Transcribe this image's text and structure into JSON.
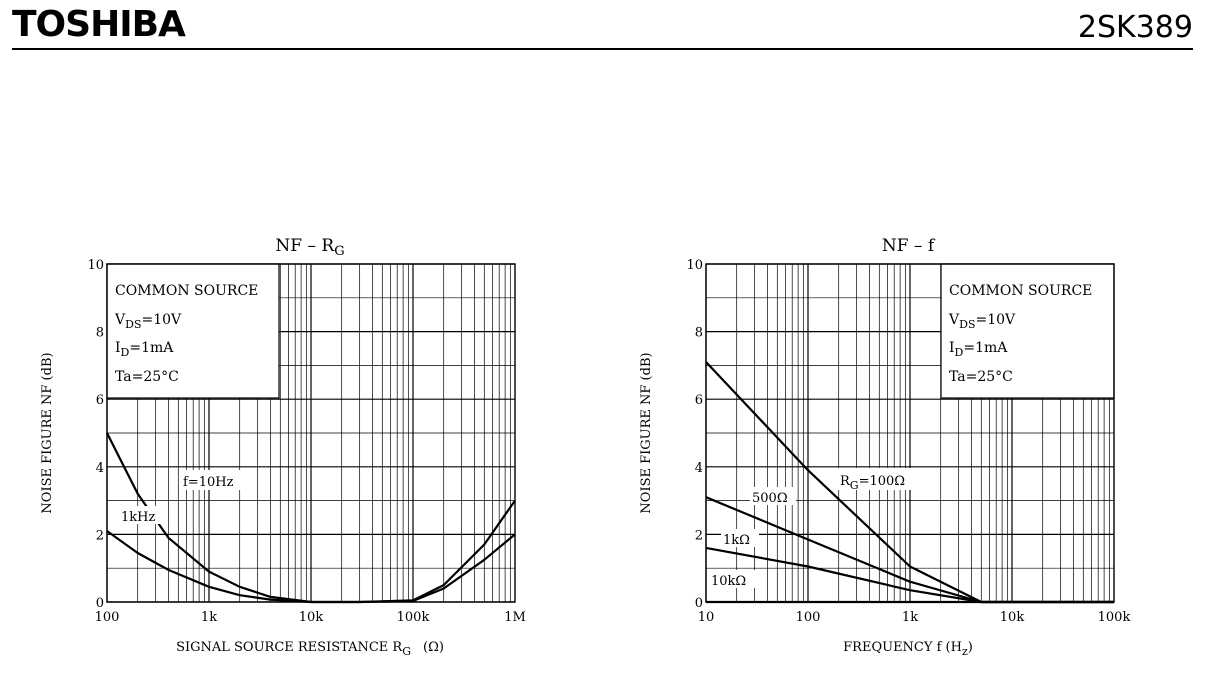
{
  "header": {
    "brand": "TOSHIBA",
    "part_number": "2SK389"
  },
  "chart_data": [
    {
      "type": "line",
      "title": "NF – R",
      "title_sub": "G",
      "xlabel": "SIGNAL SOURCE RESISTANCE   R",
      "xlabel_sub": "G",
      "xlabel_unit": "(Ω)",
      "ylabel": "NOISE FIGURE   NF   (dB)",
      "x_scale": "log",
      "xlim": [
        100,
        1000000
      ],
      "ylim": [
        0,
        10
      ],
      "x_ticks": [
        100,
        1000,
        10000,
        100000,
        1000000
      ],
      "x_tick_labels": [
        "100",
        "1k",
        "10k",
        "100k",
        "1M"
      ],
      "y_ticks": [
        0,
        2,
        4,
        6,
        8,
        10
      ],
      "y_tick_labels": [
        "0",
        "2",
        "4",
        "6",
        "8",
        "10"
      ],
      "info_box": {
        "line1": "COMMON SOURCE",
        "line2_main": "V",
        "line2_sub": "DS",
        "line2_rest": "=10V",
        "line3_main": "I",
        "line3_sub": "D",
        "line3_rest": "=1mA",
        "line4": "Ta=25°C"
      },
      "series": [
        {
          "name": "f=10Hz",
          "points": [
            [
              100,
              5.0
            ],
            [
              200,
              3.2
            ],
            [
              400,
              1.9
            ],
            [
              1000,
              0.9
            ],
            [
              2000,
              0.45
            ],
            [
              4000,
              0.15
            ],
            [
              10000,
              0.0
            ],
            [
              30000,
              0.0
            ],
            [
              100000,
              0.05
            ],
            [
              200000,
              0.5
            ],
            [
              500000,
              1.7
            ],
            [
              1000000,
              3.0
            ]
          ]
        },
        {
          "name": "1kHz",
          "points": [
            [
              100,
              2.1
            ],
            [
              200,
              1.45
            ],
            [
              400,
              0.95
            ],
            [
              1000,
              0.45
            ],
            [
              2000,
              0.2
            ],
            [
              4000,
              0.07
            ],
            [
              10000,
              0.0
            ],
            [
              30000,
              0.0
            ],
            [
              100000,
              0.03
            ],
            [
              200000,
              0.4
            ],
            [
              500000,
              1.25
            ],
            [
              1000000,
              2.0
            ]
          ]
        }
      ]
    },
    {
      "type": "line",
      "title": "NF – f",
      "xlabel": "FREQUENCY   f   (H",
      "xlabel_sub": "z",
      "xlabel_close": ")",
      "ylabel": "NOISE FIGURE   NF   (dB)",
      "x_scale": "log",
      "xlim": [
        10,
        100000
      ],
      "ylim": [
        0,
        10
      ],
      "x_ticks": [
        10,
        100,
        1000,
        10000,
        100000
      ],
      "x_tick_labels": [
        "10",
        "100",
        "1k",
        "10k",
        "100k"
      ],
      "y_ticks": [
        0,
        2,
        4,
        6,
        8,
        10
      ],
      "y_tick_labels": [
        "0",
        "2",
        "4",
        "6",
        "8",
        "10"
      ],
      "info_box": {
        "line1": "COMMON SOURCE",
        "line2_main": "V",
        "line2_sub": "DS",
        "line2_rest": "=10V",
        "line3_main": "I",
        "line3_sub": "D",
        "line3_rest": "=1mA",
        "line4": "Ta=25°C"
      },
      "series": [
        {
          "name": "R=100Ω",
          "label_main": "R",
          "label_sub": "G",
          "label_rest": "=100Ω",
          "points": [
            [
              10,
              7.1
            ],
            [
              100,
              3.9
            ],
            [
              1000,
              1.05
            ],
            [
              5000,
              0.0
            ],
            [
              100000,
              0.0
            ]
          ]
        },
        {
          "name": "500Ω",
          "points": [
            [
              10,
              3.1
            ],
            [
              100,
              1.85
            ],
            [
              1000,
              0.6
            ],
            [
              5000,
              0.0
            ],
            [
              100000,
              0.0
            ]
          ]
        },
        {
          "name": "1kΩ",
          "points": [
            [
              10,
              1.6
            ],
            [
              100,
              1.05
            ],
            [
              1000,
              0.35
            ],
            [
              5000,
              0.0
            ],
            [
              100000,
              0.0
            ]
          ]
        },
        {
          "name": "10kΩ",
          "points": [
            [
              10,
              0.0
            ],
            [
              100000,
              0.0
            ]
          ]
        }
      ]
    }
  ]
}
